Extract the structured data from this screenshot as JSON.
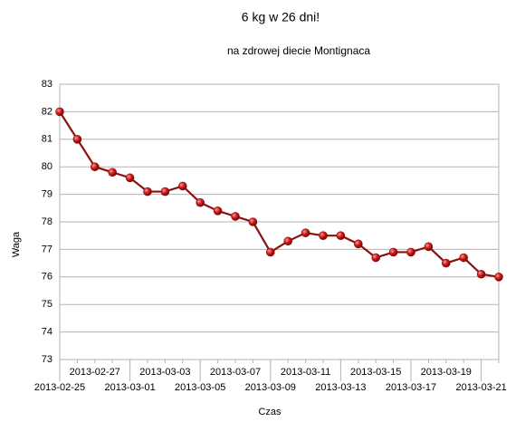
{
  "chart_data": {
    "type": "line",
    "title": "6 kg w 26 dni!",
    "subtitle": "na zdrowej diecie Montignaca",
    "x_label": "Czas",
    "y_label": "Waga",
    "categories": [
      "2013-02-25",
      null,
      "2013-02-27",
      null,
      "2013-03-01",
      null,
      "2013-03-03",
      null,
      "2013-03-05",
      null,
      "2013-03-07",
      null,
      "2013-03-09",
      null,
      "2013-03-11",
      null,
      "2013-03-13",
      null,
      "2013-03-15",
      null,
      "2013-03-17",
      null,
      "2013-03-19",
      null,
      "2013-03-21",
      null
    ],
    "values": [
      82,
      81,
      80,
      79.8,
      79.6,
      79.1,
      79.1,
      79.3,
      78.7,
      78.4,
      78.2,
      78,
      76.9,
      77.3,
      77.6,
      77.5,
      77.5,
      77.2,
      76.7,
      76.9,
      76.9,
      77.1,
      76.5,
      76.7,
      76.1,
      76
    ],
    "color": "#8b1010",
    "ylim": [
      73,
      83
    ],
    "yticks": [
      73,
      74,
      75,
      76,
      77,
      78,
      79,
      80,
      81,
      82,
      83
    ],
    "grid": true
  }
}
